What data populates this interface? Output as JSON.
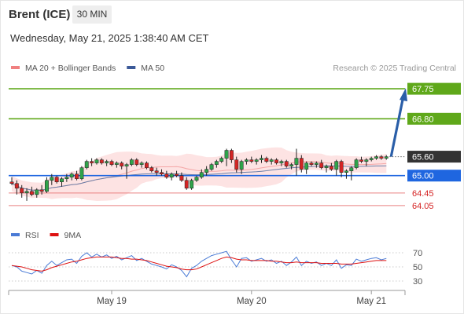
{
  "header": {
    "instrument": "Brent (ICE)",
    "timeframe": "30 MIN",
    "timestamp": "Wednesday, May 21, 2025 1:38:40 AM CET"
  },
  "chart_data": [
    {
      "type": "candlestick",
      "legend": [
        {
          "name": "MA 20 + Bollinger Bands",
          "color": "#f08080"
        },
        {
          "name": "MA 50",
          "color": "#3b5998"
        }
      ],
      "source": "Research © 2025 Trading Central",
      "x_ticks": [
        "May 19",
        "May 20",
        "May 21"
      ],
      "ylim": [
        63.65,
        68.2
      ],
      "candles": [
        [
          64.8,
          64.95,
          64.7,
          64.75
        ],
        [
          64.75,
          64.85,
          64.4,
          64.6
        ],
        [
          64.6,
          64.7,
          64.3,
          64.45
        ],
        [
          64.45,
          64.6,
          64.2,
          64.5
        ],
        [
          64.5,
          64.65,
          64.35,
          64.4
        ],
        [
          64.4,
          64.6,
          64.3,
          64.55
        ],
        [
          64.55,
          64.7,
          64.4,
          64.5
        ],
        [
          64.5,
          64.95,
          64.45,
          64.85
        ],
        [
          64.85,
          65.05,
          64.7,
          64.95
        ],
        [
          64.95,
          65.0,
          64.75,
          64.8
        ],
        [
          64.8,
          64.95,
          64.65,
          64.9
        ],
        [
          64.9,
          65.05,
          64.8,
          64.95
        ],
        [
          64.95,
          65.1,
          64.85,
          65.05
        ],
        [
          65.05,
          65.15,
          64.85,
          64.9
        ],
        [
          64.9,
          65.3,
          64.85,
          65.25
        ],
        [
          65.25,
          65.5,
          65.2,
          65.45
        ],
        [
          65.45,
          65.55,
          65.3,
          65.4
        ],
        [
          65.4,
          65.55,
          65.35,
          65.5
        ],
        [
          65.5,
          65.55,
          65.35,
          65.4
        ],
        [
          65.4,
          65.5,
          65.3,
          65.45
        ],
        [
          65.45,
          65.5,
          65.3,
          65.35
        ],
        [
          65.35,
          65.45,
          65.25,
          65.4
        ],
        [
          65.4,
          65.45,
          65.2,
          65.3
        ],
        [
          65.3,
          65.4,
          64.9,
          65.35
        ],
        [
          65.35,
          65.55,
          65.3,
          65.5
        ],
        [
          65.5,
          65.55,
          65.3,
          65.35
        ],
        [
          65.35,
          65.45,
          65.25,
          65.4
        ],
        [
          65.4,
          65.45,
          65.2,
          65.25
        ],
        [
          65.25,
          65.3,
          65.1,
          65.15
        ],
        [
          65.15,
          65.25,
          65.0,
          65.1
        ],
        [
          65.1,
          65.2,
          65.0,
          65.05
        ],
        [
          65.05,
          65.15,
          64.9,
          64.95
        ],
        [
          64.95,
          65.1,
          64.85,
          65.05
        ],
        [
          65.05,
          65.15,
          64.95,
          65.0
        ],
        [
          65.0,
          65.1,
          64.8,
          64.85
        ],
        [
          64.85,
          64.95,
          64.55,
          64.6
        ],
        [
          64.6,
          64.9,
          64.55,
          64.85
        ],
        [
          64.85,
          65.0,
          64.8,
          64.95
        ],
        [
          64.95,
          65.2,
          64.9,
          65.1
        ],
        [
          65.1,
          65.3,
          65.0,
          65.2
        ],
        [
          65.2,
          65.4,
          65.15,
          65.35
        ],
        [
          65.35,
          65.5,
          65.25,
          65.45
        ],
        [
          65.45,
          65.6,
          65.4,
          65.55
        ],
        [
          65.55,
          65.85,
          65.3,
          65.8
        ],
        [
          65.8,
          65.85,
          65.4,
          65.5
        ],
        [
          65.5,
          65.6,
          65.1,
          65.2
        ],
        [
          65.2,
          65.5,
          65.05,
          65.45
        ],
        [
          65.45,
          65.55,
          65.35,
          65.5
        ],
        [
          65.5,
          65.6,
          65.4,
          65.45
        ],
        [
          65.45,
          65.55,
          65.35,
          65.5
        ],
        [
          65.5,
          65.65,
          65.4,
          65.55
        ],
        [
          65.55,
          65.6,
          65.4,
          65.45
        ],
        [
          65.45,
          65.55,
          65.35,
          65.5
        ],
        [
          65.5,
          65.55,
          65.35,
          65.4
        ],
        [
          65.4,
          65.5,
          65.3,
          65.45
        ],
        [
          65.45,
          65.5,
          65.25,
          65.3
        ],
        [
          65.3,
          65.4,
          65.2,
          65.35
        ],
        [
          65.35,
          65.85,
          65.0,
          65.55
        ],
        [
          65.55,
          65.65,
          65.1,
          65.2
        ],
        [
          65.2,
          65.45,
          65.05,
          65.4
        ],
        [
          65.4,
          65.45,
          65.3,
          65.35
        ],
        [
          65.35,
          65.45,
          65.25,
          65.4
        ],
        [
          65.4,
          65.5,
          65.2,
          65.25
        ],
        [
          65.25,
          65.35,
          65.1,
          65.3
        ],
        [
          65.3,
          65.4,
          65.15,
          65.2
        ],
        [
          65.2,
          65.5,
          65.0,
          65.45
        ],
        [
          65.45,
          65.5,
          64.95,
          65.1
        ],
        [
          65.1,
          65.2,
          64.9,
          65.15
        ],
        [
          65.15,
          65.3,
          64.85,
          65.25
        ],
        [
          65.25,
          65.55,
          65.2,
          65.5
        ],
        [
          65.5,
          65.6,
          65.4,
          65.45
        ],
        [
          65.45,
          65.55,
          65.3,
          65.5
        ],
        [
          65.5,
          65.6,
          65.45,
          65.55
        ],
        [
          65.55,
          65.65,
          65.5,
          65.6
        ],
        [
          65.6,
          65.65,
          65.5,
          65.55
        ],
        [
          65.55,
          65.65,
          65.5,
          65.6
        ]
      ],
      "levels": [
        {
          "value": 67.75,
          "label": "67.75",
          "kind": "resistance"
        },
        {
          "value": 66.8,
          "label": "66.80",
          "kind": "resistance"
        },
        {
          "value": 65.6,
          "label": "65.60",
          "kind": "last"
        },
        {
          "value": 65.0,
          "label": "65.00",
          "kind": "pivot"
        },
        {
          "value": 64.45,
          "label": "64.45",
          "kind": "support"
        },
        {
          "value": 64.05,
          "label": "64.05",
          "kind": "support"
        }
      ],
      "target_arrow": {
        "from": 65.6,
        "to": 67.75
      }
    },
    {
      "type": "line",
      "legend": [
        {
          "name": "RSI",
          "color": "#4a7bd6"
        },
        {
          "name": "9MA",
          "color": "#dd1111"
        }
      ],
      "ylim": [
        30,
        70
      ],
      "y_ticks": [
        "70",
        "50",
        "30"
      ],
      "rsi": [
        52,
        50,
        44,
        42,
        40,
        45,
        41,
        52,
        58,
        52,
        56,
        60,
        61,
        55,
        65,
        70,
        64,
        68,
        64,
        67,
        62,
        65,
        60,
        63,
        66,
        59,
        62,
        58,
        54,
        52,
        50,
        47,
        53,
        50,
        45,
        36,
        48,
        52,
        58,
        62,
        66,
        68,
        70,
        72,
        60,
        50,
        62,
        63,
        58,
        60,
        62,
        58,
        60,
        55,
        58,
        52,
        57,
        64,
        52,
        58,
        55,
        57,
        52,
        55,
        52,
        60,
        48,
        53,
        52,
        61,
        58,
        60,
        62,
        63,
        60,
        62
      ],
      "ma9": [
        52,
        51,
        50,
        48,
        46,
        45,
        44,
        46,
        49,
        51,
        53,
        55,
        57,
        58,
        60,
        62,
        63,
        64,
        64,
        64,
        64,
        63,
        62,
        62,
        61,
        61,
        60,
        59,
        57,
        55,
        53,
        51,
        50,
        49,
        47,
        46,
        46,
        47,
        50,
        53,
        56,
        59,
        62,
        64,
        63,
        61,
        60,
        60,
        59,
        59,
        59,
        59,
        58,
        58,
        57,
        56,
        56,
        57,
        56,
        56,
        56,
        56,
        55,
        55,
        55,
        55,
        54,
        54,
        54,
        55,
        56,
        57,
        58,
        59,
        59,
        59
      ]
    }
  ]
}
